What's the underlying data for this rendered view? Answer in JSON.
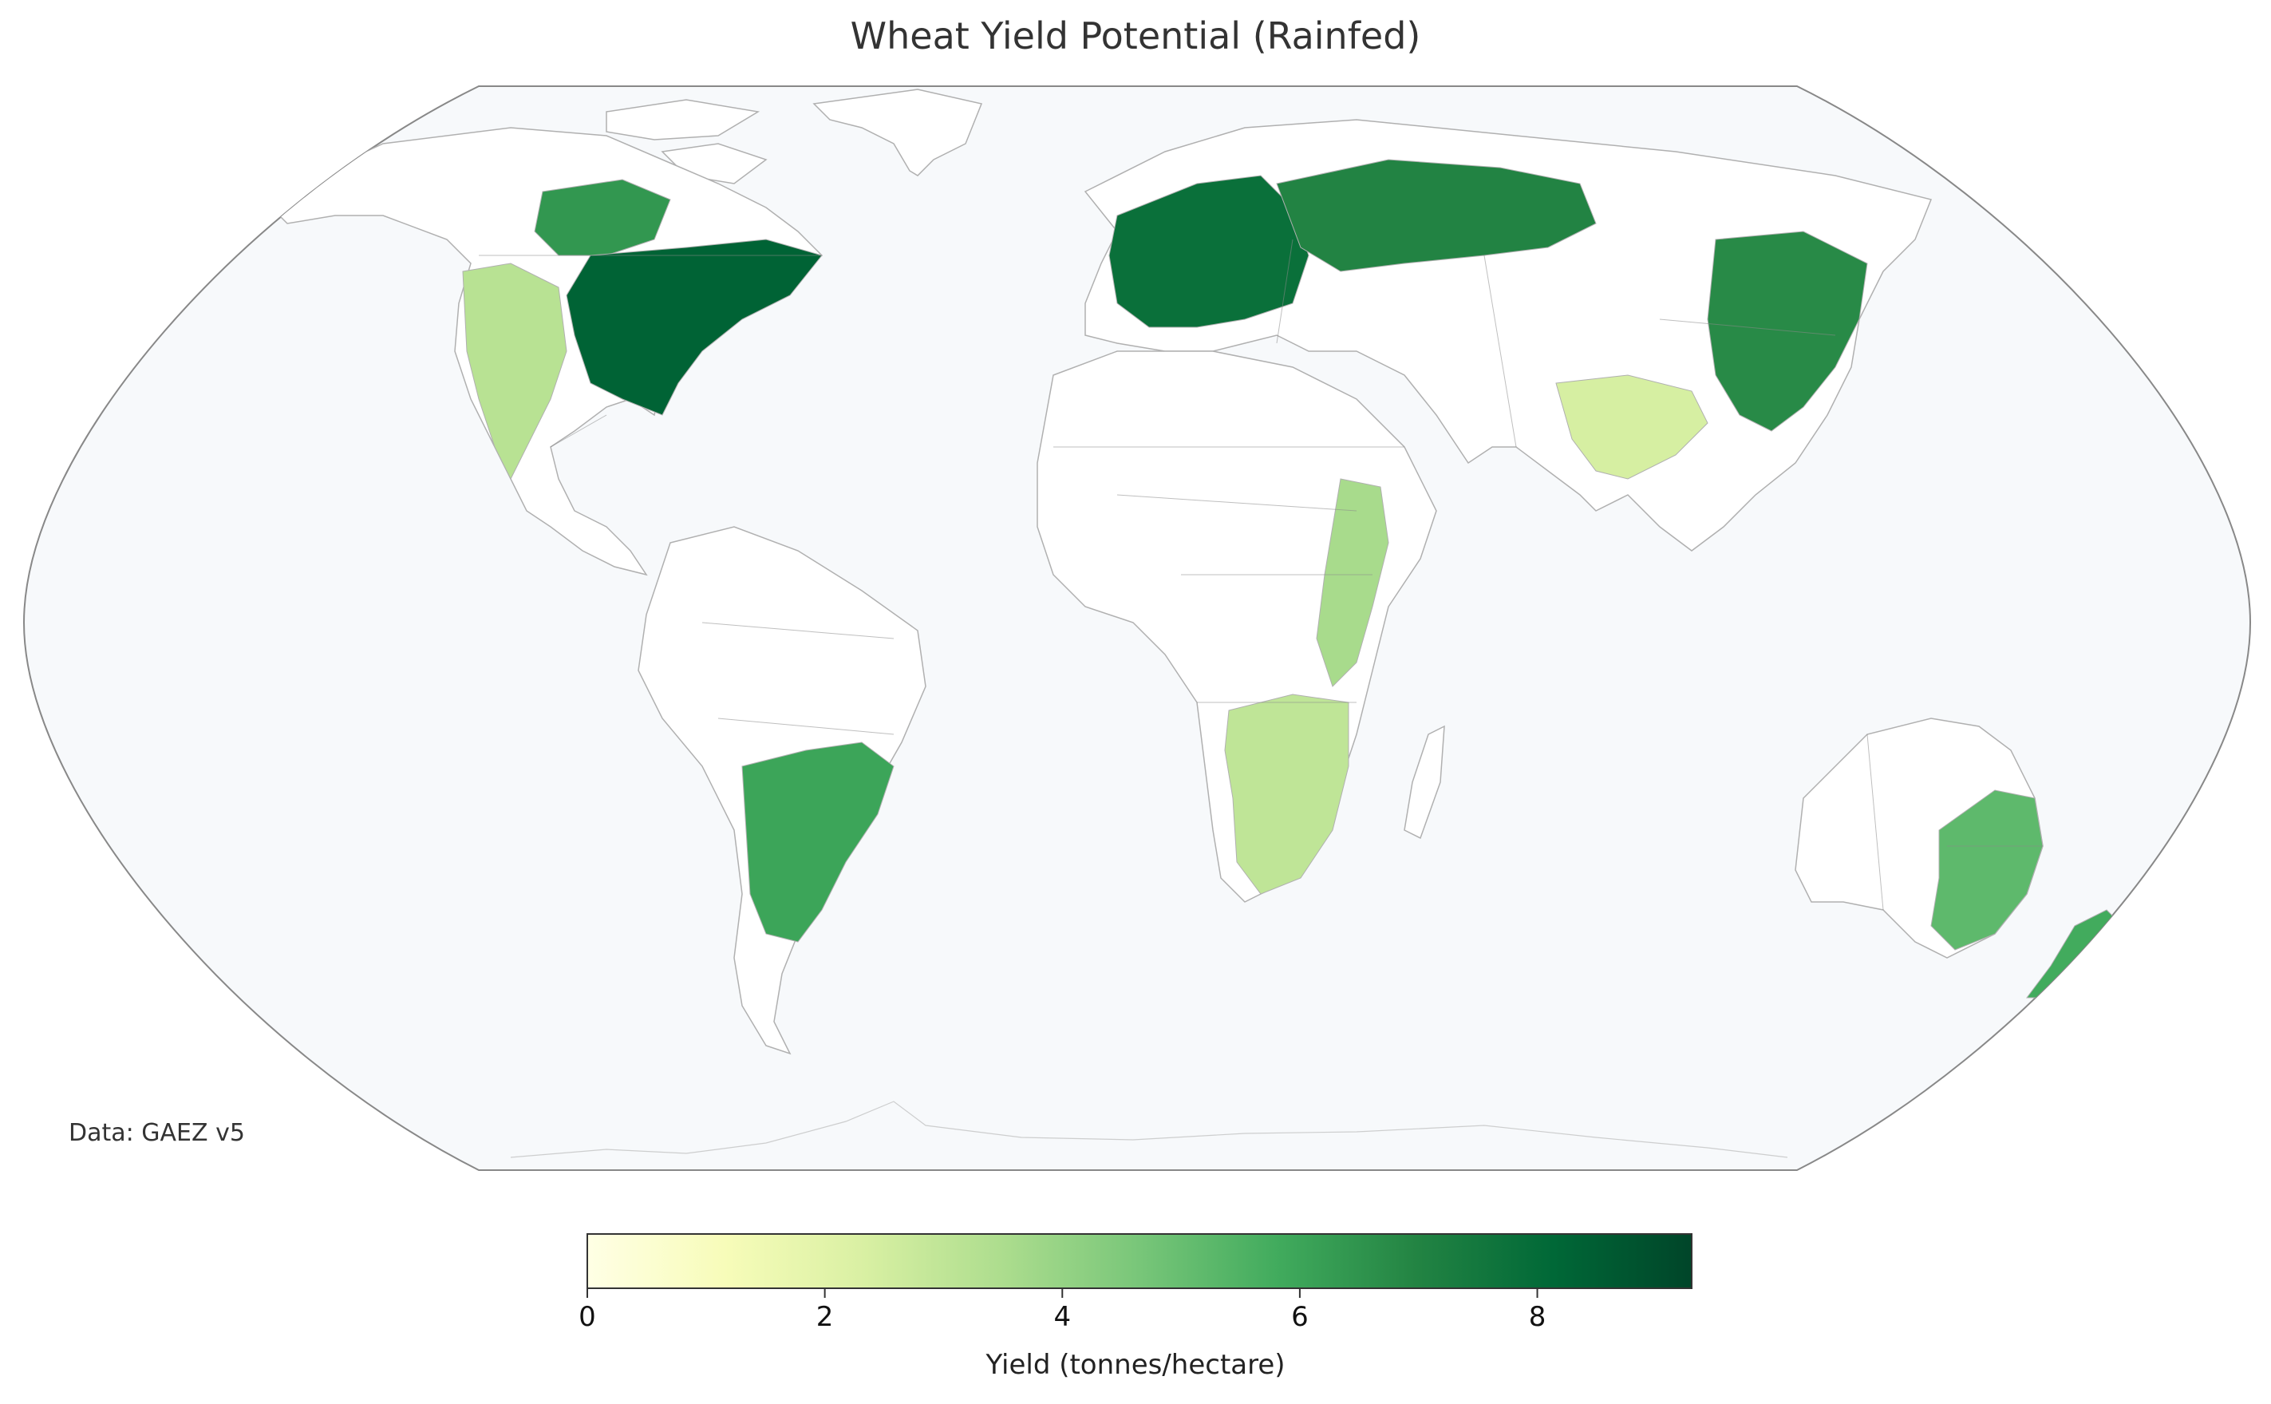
{
  "title": "Wheat Yield Potential (Rainfed)",
  "source_note": "Data: GAEZ v5",
  "colorbar": {
    "label": "Yield (tonnes/hectare)",
    "min": 0,
    "max": 9.3,
    "ticks": [
      0,
      2,
      4,
      6,
      8
    ],
    "tick_labels": [
      "0",
      "2",
      "4",
      "6",
      "8"
    ],
    "colormap": [
      "#ffffe5",
      "#f7fcb9",
      "#d9f0a3",
      "#addd8e",
      "#78c679",
      "#41ab5d",
      "#238443",
      "#006837",
      "#004529"
    ]
  },
  "colors": {
    "ocean": "#f7f9fb",
    "frame": "#888888",
    "border": "#8a8a8a",
    "coast": "#b0b0b0",
    "land_no_data": "#ffffff"
  },
  "regions": [
    {
      "name": "North America (US corn belt)",
      "yield": 8.3
    },
    {
      "name": "Canadian prairies",
      "yield": 6.4
    },
    {
      "name": "US west / Mexico",
      "yield": 3.2
    },
    {
      "name": "Europe",
      "yield": 7.8
    },
    {
      "name": "Russia",
      "yield": 7.0
    },
    {
      "name": "East China / Korea / Japan",
      "yield": 6.8
    },
    {
      "name": "South Asia",
      "yield": 2.4
    },
    {
      "name": "East Africa highlands",
      "yield": 3.6
    },
    {
      "name": "Southern Africa",
      "yield": 3.0
    },
    {
      "name": "Pampas (Argentina / Uruguay / S. Brazil)",
      "yield": 6.0
    },
    {
      "name": "SE Australia",
      "yield": 5.2
    },
    {
      "name": "New Zealand",
      "yield": 5.8
    }
  ]
}
